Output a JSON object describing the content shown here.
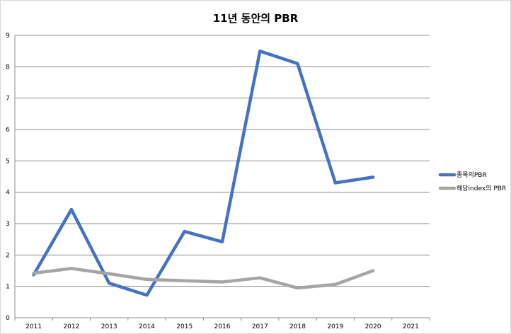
{
  "chart_data": {
    "type": "line",
    "title": "11년 동안의 PBR",
    "categories": [
      "2011",
      "2012",
      "2013",
      "2014",
      "2015",
      "2016",
      "2017",
      "2018",
      "2019",
      "2020",
      "2021"
    ],
    "ylim": [
      0,
      9
    ],
    "yticks": [
      "0",
      "1",
      "2",
      "3",
      "4",
      "5",
      "6",
      "7",
      "8",
      "9"
    ],
    "grid": true,
    "legend_position": "right",
    "series": [
      {
        "name": "종목의PBR",
        "color": "#4472c4",
        "values": [
          1.37,
          3.45,
          1.1,
          0.72,
          2.75,
          2.42,
          8.5,
          8.1,
          4.3,
          4.48,
          null
        ]
      },
      {
        "name": "해당index의 PBR",
        "color": "#a5a5a5",
        "values": [
          1.42,
          1.57,
          1.4,
          1.22,
          1.18,
          1.14,
          1.27,
          0.95,
          1.06,
          1.5,
          null
        ]
      }
    ]
  }
}
